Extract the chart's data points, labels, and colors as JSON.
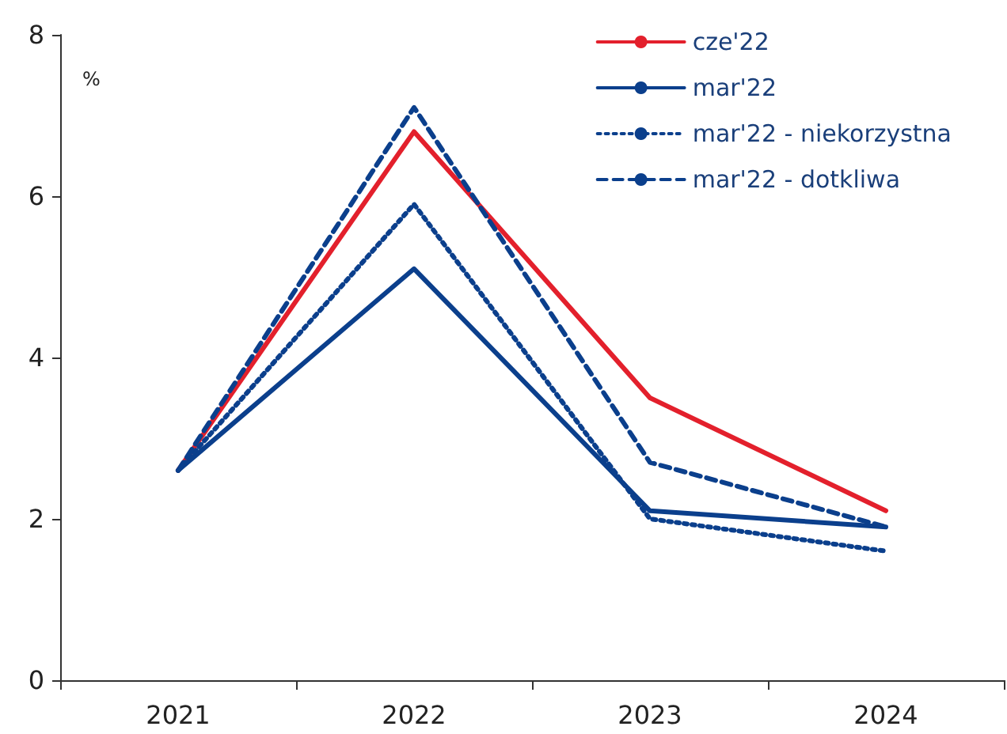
{
  "chart_data": {
    "type": "line",
    "ylabel": "%",
    "categories": [
      "2021",
      "2022",
      "2023",
      "2024"
    ],
    "series": [
      {
        "name": "cze'22",
        "color": "#e3202c",
        "line_style": "solid",
        "values": [
          2.6,
          6.8,
          3.5,
          2.1
        ]
      },
      {
        "name": "mar'22",
        "color": "#0b3f8c",
        "line_style": "solid",
        "values": [
          2.6,
          5.1,
          2.1,
          1.9
        ]
      },
      {
        "name": "mar'22 - niekorzystna",
        "color": "#0b3f8c",
        "line_style": "dotted",
        "values": [
          2.6,
          5.9,
          2.0,
          1.6
        ]
      },
      {
        "name": "mar'22 - dotkliwa",
        "color": "#0b3f8c",
        "line_style": "dashed",
        "values": [
          2.6,
          7.1,
          2.7,
          1.9
        ]
      }
    ],
    "ylim": [
      0,
      8
    ],
    "yticks": [
      0,
      2,
      4,
      6,
      8
    ],
    "grid": false,
    "legend": "top right",
    "marker": "none"
  }
}
